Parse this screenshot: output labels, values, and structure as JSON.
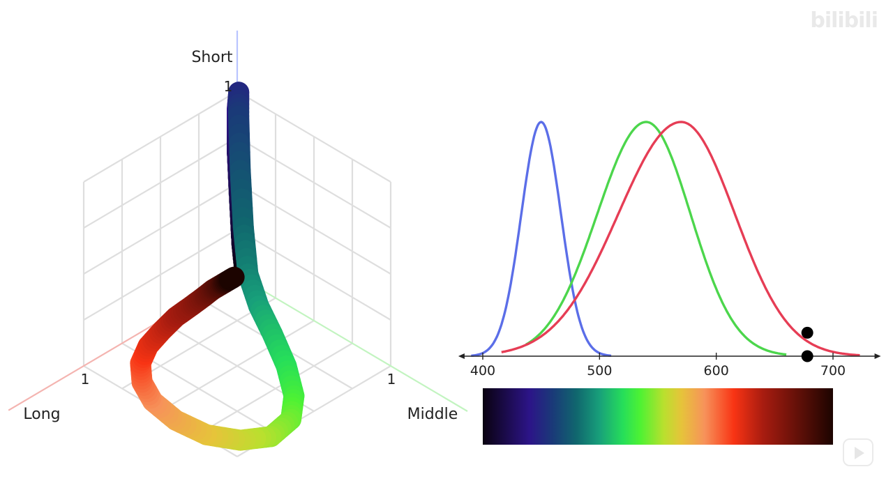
{
  "watermark": {
    "text": "bilibili",
    "icon": "play-icon"
  },
  "chart_data": [
    {
      "type": "line",
      "axes": {
        "x": "Long",
        "y": "Middle",
        "z": "Short"
      },
      "tick_labels": {
        "x": "1",
        "y": "1",
        "z": "1"
      },
      "ranges": {
        "x": [
          0,
          1
        ],
        "y": [
          0,
          1
        ],
        "z": [
          0,
          1
        ]
      },
      "grid": true,
      "series": [
        {
          "color_by_wavelength": true,
          "points": [
            {
              "wavelength": 390,
              "long": 0.0,
              "middle": 0.0,
              "short": 0.0
            },
            {
              "wavelength": 400,
              "long": 0.0,
              "middle": 0.0,
              "short": 0.05
            },
            {
              "wavelength": 410,
              "long": 0.0,
              "middle": 0.0,
              "short": 0.17
            },
            {
              "wavelength": 420,
              "long": 0.0,
              "middle": 0.0,
              "short": 0.4
            },
            {
              "wavelength": 430,
              "long": 0.0,
              "middle": 0.0,
              "short": 0.66
            },
            {
              "wavelength": 440,
              "long": 0.0,
              "middle": 0.0,
              "short": 0.9
            },
            {
              "wavelength": 450,
              "long": 0.0,
              "middle": 0.01,
              "short": 1.0
            },
            {
              "wavelength": 460,
              "long": 0.01,
              "middle": 0.02,
              "short": 0.88
            },
            {
              "wavelength": 470,
              "long": 0.02,
              "middle": 0.04,
              "short": 0.6
            },
            {
              "wavelength": 480,
              "long": 0.04,
              "middle": 0.08,
              "short": 0.32
            },
            {
              "wavelength": 490,
              "long": 0.08,
              "middle": 0.15,
              "short": 0.12
            },
            {
              "wavelength": 500,
              "long": 0.14,
              "middle": 0.28,
              "short": 0.04
            },
            {
              "wavelength": 510,
              "long": 0.22,
              "middle": 0.45,
              "short": 0.01
            },
            {
              "wavelength": 520,
              "long": 0.34,
              "middle": 0.66,
              "short": 0.0
            },
            {
              "wavelength": 530,
              "long": 0.48,
              "middle": 0.85,
              "short": 0.0
            },
            {
              "wavelength": 540,
              "long": 0.62,
              "middle": 0.97,
              "short": 0.0
            },
            {
              "wavelength": 550,
              "long": 0.78,
              "middle": 1.0,
              "short": 0.0
            },
            {
              "wavelength": 560,
              "long": 0.9,
              "middle": 0.92,
              "short": 0.0
            },
            {
              "wavelength": 570,
              "long": 0.98,
              "middle": 0.78,
              "short": 0.0
            },
            {
              "wavelength": 580,
              "long": 1.0,
              "middle": 0.6,
              "short": 0.0
            },
            {
              "wavelength": 590,
              "long": 0.97,
              "middle": 0.42,
              "short": 0.0
            },
            {
              "wavelength": 600,
              "long": 0.9,
              "middle": 0.28,
              "short": 0.0
            },
            {
              "wavelength": 610,
              "long": 0.8,
              "middle": 0.17,
              "short": 0.0
            },
            {
              "wavelength": 620,
              "long": 0.68,
              "middle": 0.1,
              "short": 0.0
            },
            {
              "wavelength": 630,
              "long": 0.55,
              "middle": 0.06,
              "short": 0.0
            },
            {
              "wavelength": 640,
              "long": 0.43,
              "middle": 0.03,
              "short": 0.0
            },
            {
              "wavelength": 650,
              "long": 0.32,
              "middle": 0.02,
              "short": 0.0
            },
            {
              "wavelength": 660,
              "long": 0.23,
              "middle": 0.01,
              "short": 0.0
            },
            {
              "wavelength": 670,
              "long": 0.16,
              "middle": 0.0,
              "short": 0.0
            },
            {
              "wavelength": 680,
              "long": 0.11,
              "middle": 0.0,
              "short": 0.0
            },
            {
              "wavelength": 700,
              "long": 0.05,
              "middle": 0.0,
              "short": 0.0
            },
            {
              "wavelength": 720,
              "long": 0.02,
              "middle": 0.0,
              "short": 0.0
            }
          ]
        }
      ]
    },
    {
      "type": "line",
      "x_ticks": [
        400,
        500,
        600,
        700
      ],
      "xlim": [
        385,
        735
      ],
      "ylim": [
        0,
        1
      ],
      "series": [
        {
          "color": "#5b6ee8",
          "peak": 450,
          "sigma_left": 17,
          "sigma_right": 17,
          "x_start": 390,
          "x_end": 510
        },
        {
          "color": "#4cd64c",
          "peak": 540,
          "sigma_left": 42,
          "sigma_right": 38,
          "x_start": 437,
          "x_end": 660
        },
        {
          "color": "#e63d55",
          "peak": 570,
          "sigma_left": 54,
          "sigma_right": 46,
          "x_start": 416,
          "x_end": 723
        }
      ],
      "markers": [
        {
          "x": 678,
          "y": 0.1
        },
        {
          "x": 678,
          "y": 0.0
        }
      ],
      "spectrum_bar": {
        "x_start": 400,
        "x_end": 700,
        "stops": [
          {
            "wavelength": 400,
            "color": "#0a0210"
          },
          {
            "wavelength": 440,
            "color": "#2c1488"
          },
          {
            "wavelength": 460,
            "color": "#1a3a78"
          },
          {
            "wavelength": 480,
            "color": "#10666e"
          },
          {
            "wavelength": 500,
            "color": "#18a07a"
          },
          {
            "wavelength": 520,
            "color": "#26de5a"
          },
          {
            "wavelength": 535,
            "color": "#4ef233"
          },
          {
            "wavelength": 555,
            "color": "#b9e02e"
          },
          {
            "wavelength": 570,
            "color": "#e6c43a"
          },
          {
            "wavelength": 590,
            "color": "#f7925a"
          },
          {
            "wavelength": 615,
            "color": "#f83414"
          },
          {
            "wavelength": 640,
            "color": "#a81c10"
          },
          {
            "wavelength": 700,
            "color": "#1c0400"
          }
        ]
      }
    }
  ]
}
